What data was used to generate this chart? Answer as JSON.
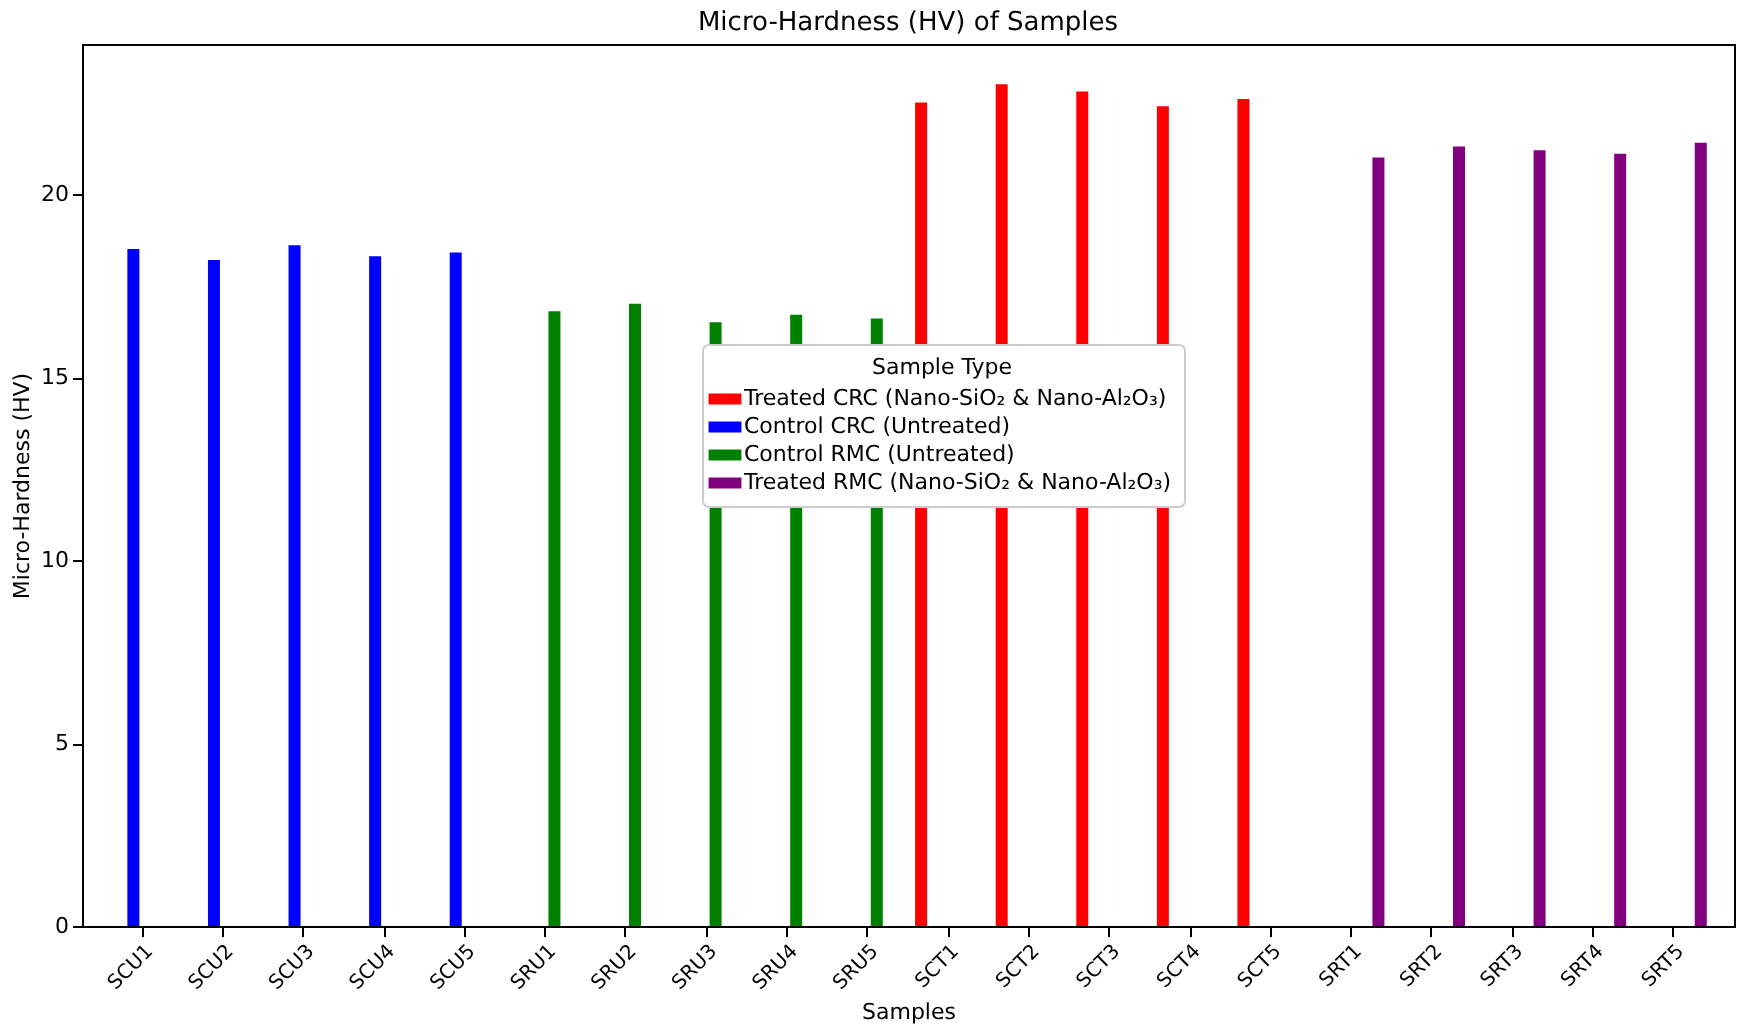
{
  "chart_data": {
    "type": "bar",
    "title": "Micro-Hardness (HV) of Samples",
    "xlabel": "Samples",
    "ylabel": "Micro-Hardness (HV)",
    "legend_title": "Sample Type",
    "categories": [
      "SCU1",
      "SCU2",
      "SCU3",
      "SCU4",
      "SCU5",
      "SRU1",
      "SRU2",
      "SRU3",
      "SRU4",
      "SRU5",
      "SCT1",
      "SCT2",
      "SCT3",
      "SCT4",
      "SCT5",
      "SRT1",
      "SRT2",
      "SRT3",
      "SRT4",
      "SRT5"
    ],
    "series": [
      {
        "name": "Treated CRC (Nano-SiO₂ & Nano-Al₂O₃)",
        "color": "#ff0000",
        "values": [
          null,
          null,
          null,
          null,
          null,
          null,
          null,
          null,
          null,
          null,
          22.5,
          23.0,
          22.8,
          22.4,
          22.6,
          null,
          null,
          null,
          null,
          null
        ]
      },
      {
        "name": "Control CRC (Untreated)",
        "color": "#0000ff",
        "values": [
          18.5,
          18.2,
          18.6,
          18.3,
          18.4,
          null,
          null,
          null,
          null,
          null,
          null,
          null,
          null,
          null,
          null,
          null,
          null,
          null,
          null,
          null
        ]
      },
      {
        "name": "Control RMC (Untreated)",
        "color": "#008000",
        "values": [
          null,
          null,
          null,
          null,
          null,
          16.8,
          17.0,
          16.5,
          16.7,
          16.6,
          null,
          null,
          null,
          null,
          null,
          null,
          null,
          null,
          null,
          null
        ]
      },
      {
        "name": "Treated RMC (Nano-SiO₂ & Nano-Al₂O₃)",
        "color": "#800080",
        "values": [
          null,
          null,
          null,
          null,
          null,
          null,
          null,
          null,
          null,
          null,
          null,
          null,
          null,
          null,
          null,
          21.0,
          21.3,
          21.2,
          21.1,
          21.4
        ]
      }
    ],
    "ylim": [
      0,
      24.1
    ],
    "yticks": [
      0,
      5,
      10,
      15,
      20
    ],
    "grid": false,
    "legend": "center"
  }
}
